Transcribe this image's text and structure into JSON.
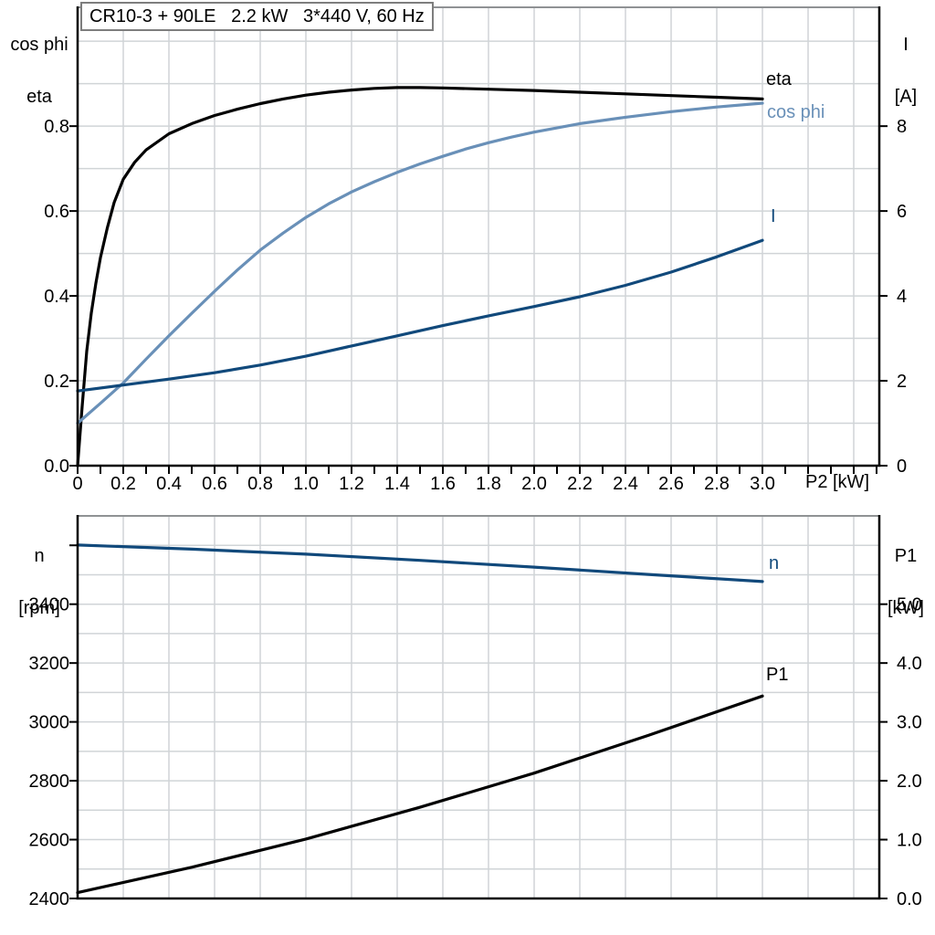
{
  "colors": {
    "black": "#000000",
    "steel_blue": "#6990b8",
    "navy_blue": "#11497b",
    "grid": "#d0d4d7",
    "plot_border": "#8f9294",
    "title_border": "#7e7e7e"
  },
  "chart_data": [
    {
      "type": "line",
      "title": "CR10-3 + 90LE   2.2 kW   3*440 V, 60 Hz",
      "x_axis": {
        "label": "P2 [kW]",
        "range": [
          0,
          3.512
        ],
        "grid_step": 0.2,
        "tick_step": 0.1,
        "ticks": [
          {
            "v": 0,
            "label": "0"
          },
          {
            "v": 0.2,
            "label": "0.2"
          },
          {
            "v": 0.4,
            "label": "0.4"
          },
          {
            "v": 0.6,
            "label": "0.6"
          },
          {
            "v": 0.8,
            "label": "0.8"
          },
          {
            "v": 1.0,
            "label": "1.0"
          },
          {
            "v": 1.2,
            "label": "1.2"
          },
          {
            "v": 1.4,
            "label": "1.4"
          },
          {
            "v": 1.6,
            "label": "1.6"
          },
          {
            "v": 1.8,
            "label": "1.8"
          },
          {
            "v": 2.0,
            "label": "2.0"
          },
          {
            "v": 2.2,
            "label": "2.2"
          },
          {
            "v": 2.4,
            "label": "2.4"
          },
          {
            "v": 2.6,
            "label": "2.6"
          },
          {
            "v": 2.8,
            "label": "2.8"
          },
          {
            "v": 3.0,
            "label": "3.0"
          }
        ]
      },
      "y_left": {
        "title_lines": [
          "cos phi",
          "eta"
        ],
        "range": [
          0,
          1.08
        ],
        "grid_step": 0.1,
        "ticks": [
          {
            "v": 0,
            "label": "0.0"
          },
          {
            "v": 0.2,
            "label": "0.2"
          },
          {
            "v": 0.4,
            "label": "0.4"
          },
          {
            "v": 0.6,
            "label": "0.6"
          },
          {
            "v": 0.8,
            "label": "0.8"
          }
        ]
      },
      "y_right": {
        "title_lines": [
          "I",
          "[A]"
        ],
        "range": [
          0,
          10.8
        ],
        "grid_step": 1,
        "ticks": [
          {
            "v": 0,
            "label": "0"
          },
          {
            "v": 2,
            "label": "2"
          },
          {
            "v": 4,
            "label": "4"
          },
          {
            "v": 6,
            "label": "6"
          },
          {
            "v": 8,
            "label": "8"
          }
        ]
      },
      "series": [
        {
          "name": "eta",
          "label": "eta",
          "axis": "left",
          "color": "#000000",
          "points": [
            [
              0,
              0
            ],
            [
              0.02,
              0.14
            ],
            [
              0.04,
              0.27
            ],
            [
              0.06,
              0.36
            ],
            [
              0.08,
              0.43
            ],
            [
              0.1,
              0.49
            ],
            [
              0.13,
              0.56
            ],
            [
              0.16,
              0.62
            ],
            [
              0.2,
              0.675
            ],
            [
              0.25,
              0.715
            ],
            [
              0.3,
              0.744
            ],
            [
              0.4,
              0.782
            ],
            [
              0.5,
              0.806
            ],
            [
              0.6,
              0.825
            ],
            [
              0.7,
              0.84
            ],
            [
              0.8,
              0.853
            ],
            [
              0.9,
              0.864
            ],
            [
              1,
              0.873
            ],
            [
              1.1,
              0.88
            ],
            [
              1.2,
              0.885
            ],
            [
              1.3,
              0.889
            ],
            [
              1.4,
              0.891
            ],
            [
              1.5,
              0.891
            ],
            [
              1.6,
              0.89
            ],
            [
              1.8,
              0.887
            ],
            [
              2,
              0.884
            ],
            [
              2.2,
              0.88
            ],
            [
              2.4,
              0.876
            ],
            [
              2.6,
              0.872
            ],
            [
              2.8,
              0.868
            ],
            [
              3,
              0.864
            ]
          ]
        },
        {
          "name": "cos-phi",
          "label": "cos phi",
          "axis": "left",
          "color": "#6990b8",
          "points": [
            [
              0,
              0.1
            ],
            [
              0.1,
              0.147
            ],
            [
              0.2,
              0.195
            ],
            [
              0.3,
              0.251
            ],
            [
              0.4,
              0.306
            ],
            [
              0.5,
              0.359
            ],
            [
              0.6,
              0.411
            ],
            [
              0.7,
              0.461
            ],
            [
              0.8,
              0.508
            ],
            [
              0.9,
              0.548
            ],
            [
              1,
              0.585
            ],
            [
              1.1,
              0.617
            ],
            [
              1.2,
              0.645
            ],
            [
              1.3,
              0.669
            ],
            [
              1.4,
              0.691
            ],
            [
              1.5,
              0.711
            ],
            [
              1.6,
              0.729
            ],
            [
              1.7,
              0.746
            ],
            [
              1.8,
              0.761
            ],
            [
              1.9,
              0.774
            ],
            [
              2,
              0.786
            ],
            [
              2.2,
              0.806
            ],
            [
              2.4,
              0.821
            ],
            [
              2.6,
              0.834
            ],
            [
              2.8,
              0.845
            ],
            [
              3,
              0.854
            ]
          ]
        },
        {
          "name": "current",
          "label": "I",
          "axis": "right",
          "color": "#11497b",
          "points": [
            [
              0,
              1.76
            ],
            [
              0.2,
              1.9
            ],
            [
              0.4,
              2.04
            ],
            [
              0.6,
              2.19
            ],
            [
              0.8,
              2.37
            ],
            [
              1,
              2.58
            ],
            [
              1.2,
              2.82
            ],
            [
              1.4,
              3.06
            ],
            [
              1.6,
              3.3
            ],
            [
              1.8,
              3.53
            ],
            [
              2,
              3.75
            ],
            [
              2.2,
              3.98
            ],
            [
              2.4,
              4.25
            ],
            [
              2.6,
              4.56
            ],
            [
              2.8,
              4.92
            ],
            [
              3,
              5.31
            ]
          ]
        }
      ]
    },
    {
      "type": "line",
      "x_axis": {
        "range": [
          0,
          3.512
        ],
        "grid_step": 0.2,
        "ticks": []
      },
      "y_left": {
        "title_lines": [
          "n",
          "[rpm]"
        ],
        "range": [
          2400,
          3700
        ],
        "grid_step": 100,
        "ticks": [
          {
            "v": 2400,
            "label": "2400"
          },
          {
            "v": 2600,
            "label": "2600"
          },
          {
            "v": 2800,
            "label": "2800"
          },
          {
            "v": 3000,
            "label": "3000"
          },
          {
            "v": 3200,
            "label": "3200"
          },
          {
            "v": 3400,
            "label": "3400"
          },
          {
            "v": 3600,
            "label": ""
          }
        ]
      },
      "y_right": {
        "title_lines": [
          "P1",
          "[kW]"
        ],
        "range": [
          0,
          6.5
        ],
        "grid_step": 0.5,
        "ticks": [
          {
            "v": 0,
            "label": "0.0"
          },
          {
            "v": 1,
            "label": "1.0"
          },
          {
            "v": 2,
            "label": "2.0"
          },
          {
            "v": 3,
            "label": "3.0"
          },
          {
            "v": 4,
            "label": "4.0"
          },
          {
            "v": 5,
            "label": "5.0"
          }
        ]
      },
      "series": [
        {
          "name": "n",
          "label": "n",
          "axis": "left",
          "color": "#11497b",
          "points": [
            [
              0,
              3601
            ],
            [
              0.5,
              3587
            ],
            [
              1,
              3570
            ],
            [
              1.5,
              3549
            ],
            [
              2,
              3526
            ],
            [
              2.5,
              3501
            ],
            [
              3,
              3477
            ]
          ]
        },
        {
          "name": "p1",
          "label": "P1",
          "axis": "right",
          "color": "#000000",
          "points": [
            [
              0,
              0.1
            ],
            [
              0.5,
              0.53
            ],
            [
              1,
              1.01
            ],
            [
              1.5,
              1.55
            ],
            [
              2,
              2.13
            ],
            [
              2.5,
              2.77
            ],
            [
              3,
              3.44
            ]
          ]
        }
      ]
    }
  ]
}
